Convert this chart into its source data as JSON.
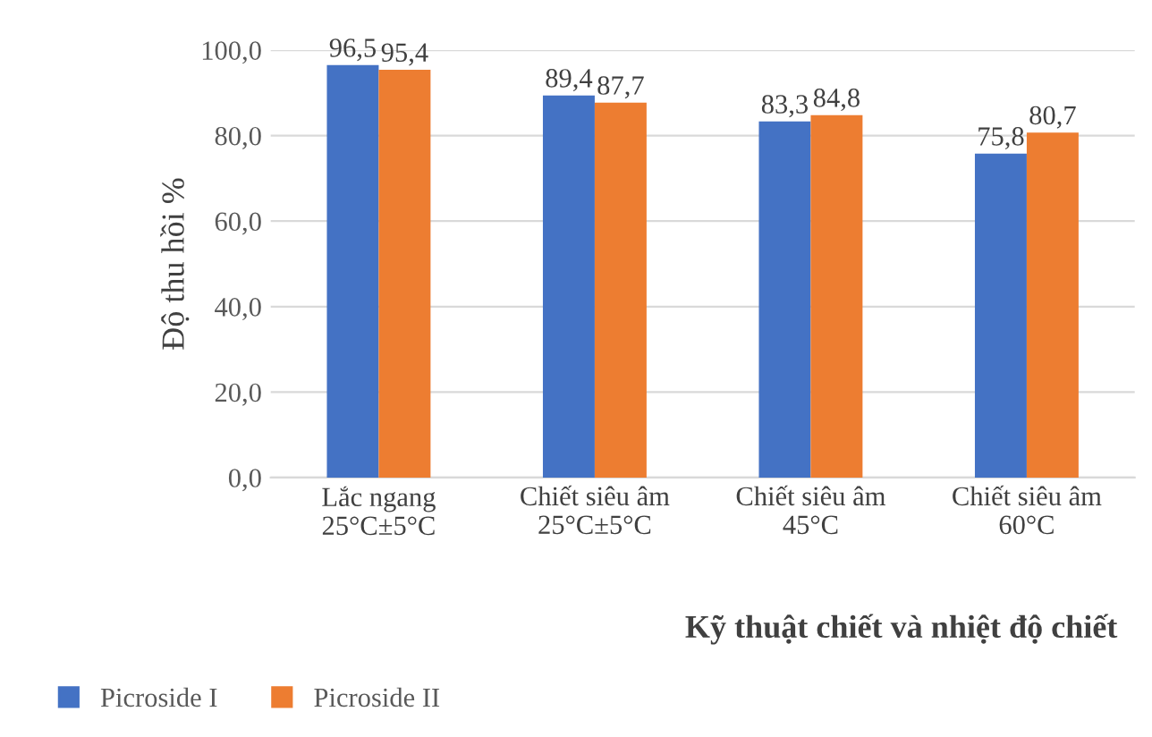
{
  "chart_data": {
    "type": "bar",
    "xlabel": "Kỹ thuật chiết và nhiệt độ chiết",
    "ylabel": "Độ thu hồi %",
    "categories": [
      "Lắc ngang\n25°C±5°C",
      "Chiết siêu âm\n25°C±5°C",
      "Chiết siêu âm\n45°C",
      "Chiết siêu âm\n60°C"
    ],
    "series": [
      {
        "name": "Picroside I",
        "color": "#4472c4",
        "values": [
          96.5,
          89.4,
          83.3,
          75.8
        ],
        "value_labels": [
          "96,5",
          "89,4",
          "83,3",
          "75,8"
        ]
      },
      {
        "name": "Picroside II",
        "color": "#ed7d31",
        "values": [
          95.4,
          87.7,
          84.8,
          80.7
        ],
        "value_labels": [
          "95,4",
          "87,7",
          "84,8",
          "80,7"
        ]
      }
    ],
    "ylim": [
      0,
      100
    ],
    "yticks": [
      {
        "value": 0,
        "label": "0,0"
      },
      {
        "value": 20,
        "label": "20,0"
      },
      {
        "value": 40,
        "label": "40,0"
      },
      {
        "value": 60,
        "label": "60,0"
      },
      {
        "value": 80,
        "label": "80,0"
      },
      {
        "value": 100,
        "label": "100,0"
      }
    ],
    "grid": "y",
    "legend": "bottom left"
  }
}
